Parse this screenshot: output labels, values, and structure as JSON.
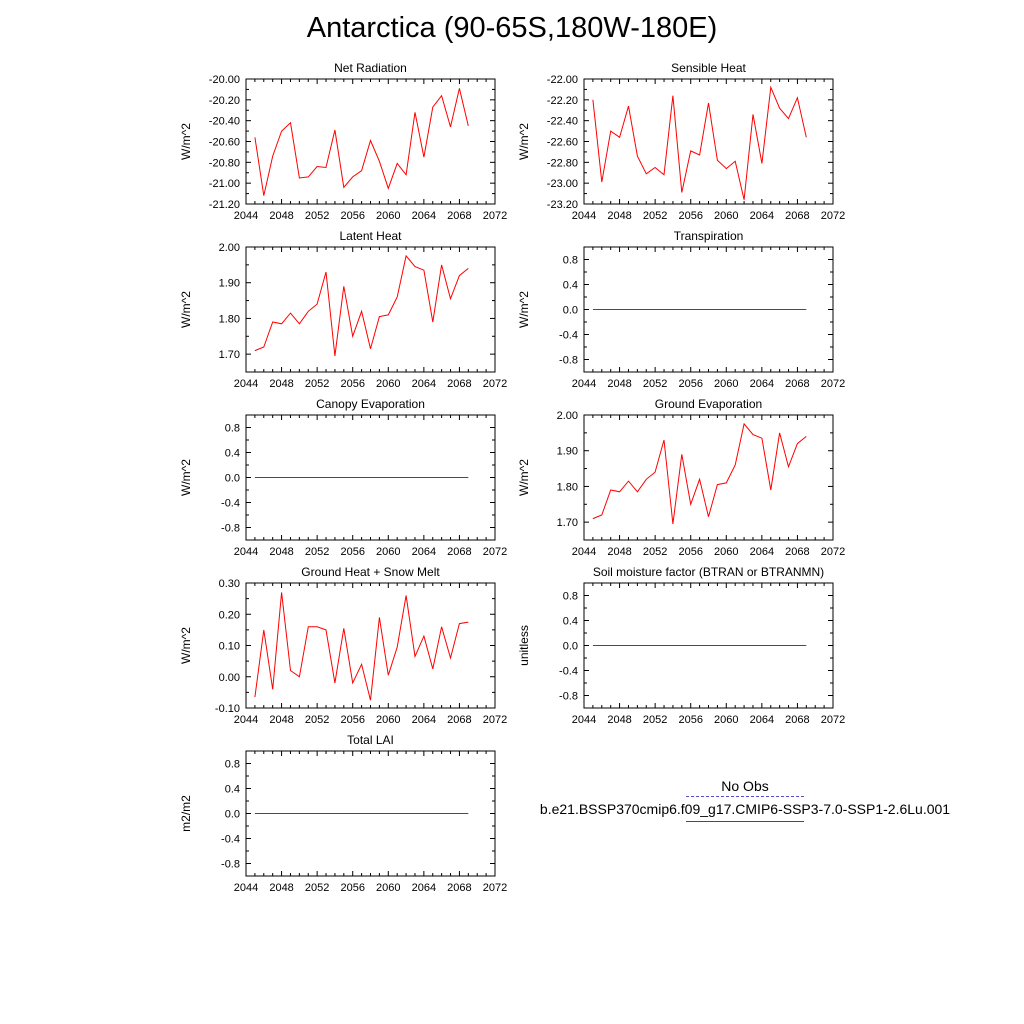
{
  "figure": {
    "title": "Antarctica (90-65S,180W-180E)"
  },
  "legend": {
    "obs_label": "No Obs",
    "model_label": "b.e21.BSSP370cmip6.f09_g17.CMIP6-SSP3-7.0-SSP1-2.6Lu.001",
    "obs_color": "#5050c8",
    "model_color": "#ff0000"
  },
  "chart_data": [
    {
      "type": "line",
      "title": "Net Radiation",
      "ylabel": "W/m^2",
      "xlim": [
        2044,
        2072
      ],
      "xticks": [
        "2044",
        "2048",
        "2052",
        "2056",
        "2060",
        "2064",
        "2068",
        "2072"
      ],
      "ylim": [
        -21.2,
        -20.0
      ],
      "yticks": [
        "-20.00",
        "-20.20",
        "-20.40",
        "-20.60",
        "-20.80",
        "-21.00",
        "-21.20"
      ],
      "x": [
        2045,
        2046,
        2047,
        2048,
        2049,
        2050,
        2051,
        2052,
        2053,
        2054,
        2055,
        2056,
        2057,
        2058,
        2059,
        2060,
        2061,
        2062,
        2063,
        2064,
        2065,
        2066,
        2067,
        2068,
        2069
      ],
      "series": [
        {
          "color": "#ff0000",
          "values": [
            -20.56,
            -21.12,
            -20.74,
            -20.5,
            -20.42,
            -20.95,
            -20.94,
            -20.84,
            -20.85,
            -20.49,
            -21.04,
            -20.94,
            -20.88,
            -20.59,
            -20.79,
            -21.05,
            -20.81,
            -20.92,
            -20.32,
            -20.75,
            -20.27,
            -20.16,
            -20.46,
            -20.09,
            -20.45
          ]
        }
      ]
    },
    {
      "type": "line",
      "title": "Sensible Heat",
      "ylabel": "W/m^2",
      "xlim": [
        2044,
        2072
      ],
      "xticks": [
        "2044",
        "2048",
        "2052",
        "2056",
        "2060",
        "2064",
        "2068",
        "2072"
      ],
      "ylim": [
        -23.2,
        -22.0
      ],
      "yticks": [
        "-22.00",
        "-22.20",
        "-22.40",
        "-22.60",
        "-22.80",
        "-23.00",
        "-23.20"
      ],
      "x": [
        2045,
        2046,
        2047,
        2048,
        2049,
        2050,
        2051,
        2052,
        2053,
        2054,
        2055,
        2056,
        2057,
        2058,
        2059,
        2060,
        2061,
        2062,
        2063,
        2064,
        2065,
        2066,
        2067,
        2068,
        2069
      ],
      "series": [
        {
          "color": "#ff0000",
          "values": [
            -22.2,
            -22.99,
            -22.5,
            -22.56,
            -22.26,
            -22.74,
            -22.91,
            -22.85,
            -22.92,
            -22.16,
            -23.09,
            -22.69,
            -22.73,
            -22.23,
            -22.78,
            -22.86,
            -22.79,
            -23.16,
            -22.34,
            -22.81,
            -22.08,
            -22.28,
            -22.38,
            -22.18,
            -22.56
          ]
        }
      ]
    },
    {
      "type": "line",
      "title": "Latent Heat",
      "ylabel": "W/m^2",
      "xlim": [
        2044,
        2072
      ],
      "xticks": [
        "2044",
        "2048",
        "2052",
        "2056",
        "2060",
        "2064",
        "2068",
        "2072"
      ],
      "ylim": [
        1.65,
        2.0
      ],
      "yticks": [
        "2.00",
        "1.90",
        "1.80",
        "1.70"
      ],
      "ytick_values": [
        2.0,
        1.9,
        1.8,
        1.7
      ],
      "x": [
        2045,
        2046,
        2047,
        2048,
        2049,
        2050,
        2051,
        2052,
        2053,
        2054,
        2055,
        2056,
        2057,
        2058,
        2059,
        2060,
        2061,
        2062,
        2063,
        2064,
        2065,
        2066,
        2067,
        2068,
        2069
      ],
      "series": [
        {
          "color": "#ff0000",
          "values": [
            1.71,
            1.72,
            1.79,
            1.785,
            1.815,
            1.785,
            1.82,
            1.84,
            1.93,
            1.695,
            1.89,
            1.75,
            1.82,
            1.715,
            1.805,
            1.81,
            1.86,
            1.975,
            1.945,
            1.935,
            1.79,
            1.95,
            1.855,
            1.92,
            1.94
          ]
        }
      ]
    },
    {
      "type": "line",
      "title": "Transpiration",
      "ylabel": "W/m^2",
      "xlim": [
        2044,
        2072
      ],
      "xticks": [
        "2044",
        "2048",
        "2052",
        "2056",
        "2060",
        "2064",
        "2068",
        "2072"
      ],
      "ylim": [
        -1.0,
        1.0
      ],
      "yticks": [
        "0.8",
        "0.4",
        "0.0",
        "-0.4",
        "-0.8"
      ],
      "ytick_values": [
        0.8,
        0.4,
        0.0,
        -0.4,
        -0.8
      ],
      "x": [
        2045,
        2069
      ],
      "series": [
        {
          "color": "#ff0000",
          "values": [
            0.0,
            0.0
          ]
        }
      ]
    },
    {
      "type": "line",
      "title": "Canopy Evaporation",
      "ylabel": "W/m^2",
      "xlim": [
        2044,
        2072
      ],
      "xticks": [
        "2044",
        "2048",
        "2052",
        "2056",
        "2060",
        "2064",
        "2068",
        "2072"
      ],
      "ylim": [
        -1.0,
        1.0
      ],
      "yticks": [
        "0.8",
        "0.4",
        "0.0",
        "-0.4",
        "-0.8"
      ],
      "ytick_values": [
        0.8,
        0.4,
        0.0,
        -0.4,
        -0.8
      ],
      "x": [
        2045,
        2069
      ],
      "series": [
        {
          "color": "#ff0000",
          "values": [
            0.0,
            0.0
          ]
        }
      ]
    },
    {
      "type": "line",
      "title": "Ground Evaporation",
      "ylabel": "W/m^2",
      "xlim": [
        2044,
        2072
      ],
      "xticks": [
        "2044",
        "2048",
        "2052",
        "2056",
        "2060",
        "2064",
        "2068",
        "2072"
      ],
      "ylim": [
        1.65,
        2.0
      ],
      "yticks": [
        "2.00",
        "1.90",
        "1.80",
        "1.70"
      ],
      "ytick_values": [
        2.0,
        1.9,
        1.8,
        1.7
      ],
      "x": [
        2045,
        2046,
        2047,
        2048,
        2049,
        2050,
        2051,
        2052,
        2053,
        2054,
        2055,
        2056,
        2057,
        2058,
        2059,
        2060,
        2061,
        2062,
        2063,
        2064,
        2065,
        2066,
        2067,
        2068,
        2069
      ],
      "series": [
        {
          "color": "#ff0000",
          "values": [
            1.71,
            1.72,
            1.79,
            1.785,
            1.815,
            1.785,
            1.82,
            1.84,
            1.93,
            1.695,
            1.89,
            1.75,
            1.82,
            1.715,
            1.805,
            1.81,
            1.86,
            1.975,
            1.945,
            1.935,
            1.79,
            1.95,
            1.855,
            1.92,
            1.94
          ]
        }
      ]
    },
    {
      "type": "line",
      "title": "Ground Heat + Snow Melt",
      "ylabel": "W/m^2",
      "xlim": [
        2044,
        2072
      ],
      "xticks": [
        "2044",
        "2048",
        "2052",
        "2056",
        "2060",
        "2064",
        "2068",
        "2072"
      ],
      "ylim": [
        -0.1,
        0.3
      ],
      "yticks": [
        "0.30",
        "0.20",
        "0.10",
        "0.00",
        "-0.10"
      ],
      "ytick_values": [
        0.3,
        0.2,
        0.1,
        0.0,
        -0.1
      ],
      "x": [
        2045,
        2046,
        2047,
        2048,
        2049,
        2050,
        2051,
        2052,
        2053,
        2054,
        2055,
        2056,
        2057,
        2058,
        2059,
        2060,
        2061,
        2062,
        2063,
        2064,
        2065,
        2066,
        2067,
        2068,
        2069
      ],
      "series": [
        {
          "color": "#ff0000",
          "values": [
            -0.065,
            0.15,
            -0.04,
            0.27,
            0.02,
            0.0,
            0.16,
            0.16,
            0.15,
            -0.02,
            0.155,
            -0.02,
            0.04,
            -0.075,
            0.19,
            0.005,
            0.095,
            0.26,
            0.065,
            0.13,
            0.025,
            0.16,
            0.06,
            0.17,
            0.175
          ]
        }
      ]
    },
    {
      "type": "line",
      "title": "Soil moisture factor (BTRAN or BTRANMN)",
      "ylabel": "unitless",
      "xlim": [
        2044,
        2072
      ],
      "xticks": [
        "2044",
        "2048",
        "2052",
        "2056",
        "2060",
        "2064",
        "2068",
        "2072"
      ],
      "ylim": [
        -1.0,
        1.0
      ],
      "yticks": [
        "0.8",
        "0.4",
        "0.0",
        "-0.4",
        "-0.8"
      ],
      "ytick_values": [
        0.8,
        0.4,
        0.0,
        -0.4,
        -0.8
      ],
      "x": [
        2045,
        2069
      ],
      "series": [
        {
          "color": "#ff0000",
          "values": [
            0.0,
            0.0
          ]
        }
      ]
    },
    {
      "type": "line",
      "title": "Total LAI",
      "ylabel": "m2/m2",
      "xlim": [
        2044,
        2072
      ],
      "xticks": [
        "2044",
        "2048",
        "2052",
        "2056",
        "2060",
        "2064",
        "2068",
        "2072"
      ],
      "ylim": [
        -1.0,
        1.0
      ],
      "yticks": [
        "0.8",
        "0.4",
        "0.0",
        "-0.4",
        "-0.8"
      ],
      "ytick_values": [
        0.8,
        0.4,
        0.0,
        -0.4,
        -0.8
      ],
      "x": [
        2045,
        2069
      ],
      "series": [
        {
          "color": "#ff0000",
          "values": [
            0.0,
            0.0
          ]
        }
      ]
    }
  ]
}
